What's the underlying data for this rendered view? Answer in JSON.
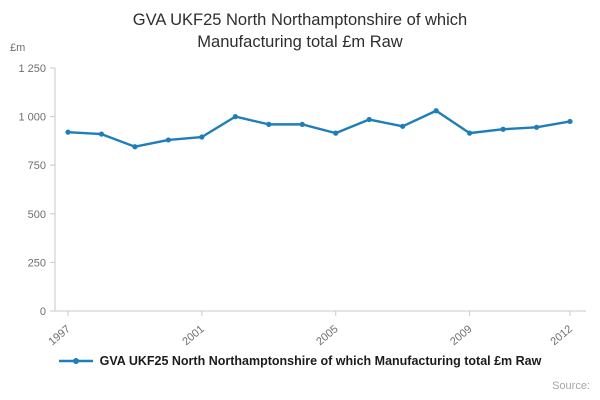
{
  "title": "GVA UKF25 North Northamptonshire of which Manufacturing total £m Raw",
  "y_unit_label": "£m",
  "source_label": "Source:",
  "legend": {
    "label": "GVA UKF25 North Northamptonshire of which Manufacturing total £m Raw"
  },
  "colors": {
    "series": "#1d7eb9",
    "axis": "#c9c9c9",
    "tick_text": "#6f6f6f",
    "title_text": "#2e2e2e",
    "source_text": "#a6a6a6"
  },
  "chart_data": {
    "type": "line",
    "title": "GVA UKF25 North Northamptonshire of which Manufacturing total £m Raw",
    "xlabel": "",
    "ylabel": "£m",
    "x": [
      1997,
      1998,
      1999,
      2000,
      2001,
      2002,
      2003,
      2004,
      2005,
      2006,
      2007,
      2008,
      2009,
      2010,
      2011,
      2012
    ],
    "series": [
      {
        "name": "GVA UKF25 North Northamptonshire of which Manufacturing total £m Raw",
        "values": [
          920,
          910,
          845,
          880,
          895,
          1000,
          960,
          960,
          915,
          985,
          950,
          1030,
          915,
          935,
          945,
          975
        ]
      }
    ],
    "ylim": [
      0,
      1250
    ],
    "yticks": [
      0,
      250,
      500,
      750,
      1000,
      1250
    ],
    "ytick_labels": [
      "0",
      "250",
      "500",
      "750",
      "1 000",
      "1 250"
    ],
    "xticks_labeled": [
      1997,
      2001,
      2005,
      2009,
      2012
    ],
    "grid": false,
    "legend_position": "bottom",
    "marker": "circle"
  }
}
